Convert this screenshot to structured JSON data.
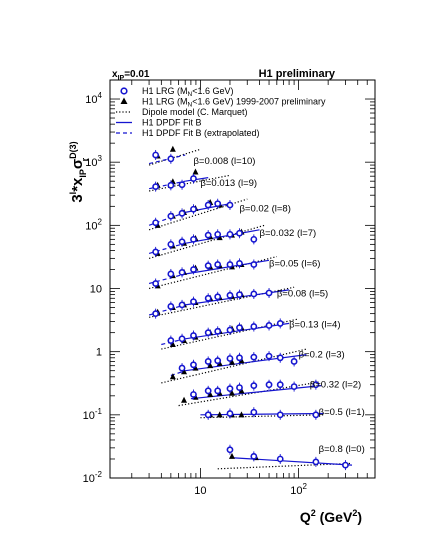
{
  "chart_data": {
    "type": "scatter",
    "header_left_main": "x",
    "header_left_sub": "IP",
    "header_left_value": "=0.01",
    "header_right": "H1 preliminary",
    "ylabel_main": "3",
    "ylabel_exp1": "l",
    "ylabel_mid": "*x",
    "ylabel_sub": "IP",
    "ylabel_sigma": "σ",
    "ylabel_exp2": "D(3)",
    "ylabel_sub2": "r",
    "xlabel_main": "Q",
    "xlabel_exp": "2",
    "xlabel_unit": " (GeV",
    "xlabel_unit_exp": "2",
    "xlabel_close": ")",
    "x_scale": "log",
    "y_scale": "log",
    "xlim": [
      1.2,
      600
    ],
    "ylim": [
      0.01,
      20000
    ],
    "x_ticks": [
      {
        "value": 10,
        "base": "10",
        "exp": ""
      },
      {
        "value": 100,
        "base": "10",
        "exp": "2"
      }
    ],
    "y_ticks": [
      {
        "value": 0.01,
        "base": "10",
        "exp": "-2"
      },
      {
        "value": 0.1,
        "base": "10",
        "exp": "-1"
      },
      {
        "value": 1,
        "base": "1",
        "exp": ""
      },
      {
        "value": 10,
        "base": "10",
        "exp": ""
      },
      {
        "value": 100,
        "base": "10",
        "exp": "2"
      },
      {
        "value": 1000,
        "base": "10",
        "exp": "3"
      },
      {
        "value": 10000,
        "base": "10",
        "exp": "4"
      }
    ],
    "legend": [
      {
        "kind": "open-circle",
        "color": "#1515d0",
        "text": "H1 LRG (M",
        "sub": "N",
        "rest": "<1.6 GeV)"
      },
      {
        "kind": "triangle",
        "color": "#000000",
        "text": "H1 LRG (M",
        "sub": "N",
        "rest": "<1.6 GeV) 1999-2007 preliminary"
      },
      {
        "kind": "dotted",
        "color": "#000000",
        "text": "Dipole model (C. Marquet)",
        "sub": "",
        "rest": ""
      },
      {
        "kind": "solid",
        "color": "#1515d0",
        "text": "H1 DPDF Fit B",
        "sub": "",
        "rest": ""
      },
      {
        "kind": "dashed",
        "color": "#1515d0",
        "text": "H1 DPDF Fit B (extrapolated)",
        "sub": "",
        "rest": ""
      }
    ],
    "bins": [
      {
        "label": "β=0.008 (l=10)",
        "label_x": 8.5,
        "label_y": 1050,
        "circles": [
          [
            3.5,
            1300
          ],
          [
            5,
            1130
          ]
        ],
        "triangles": [
          [
            3.5,
            1250
          ],
          [
            5,
            1600
          ]
        ],
        "dipole": [
          [
            3,
            900
          ],
          [
            10,
            1600
          ]
        ],
        "fit_solid": [],
        "fit_dashed": [
          [
            3,
            950
          ],
          [
            7,
            1300
          ]
        ]
      },
      {
        "label": "β=0.013 (l=9)",
        "label_x": 10,
        "label_y": 470,
        "circles": [
          [
            3.5,
            410
          ],
          [
            5,
            430
          ],
          [
            6.5,
            440
          ],
          [
            8.5,
            550
          ]
        ],
        "triangles": [
          [
            3.5,
            430
          ],
          [
            5,
            490
          ],
          [
            8.5,
            700
          ]
        ],
        "dipole": [
          [
            3,
            350
          ],
          [
            20,
            620
          ]
        ],
        "fit_solid": [
          [
            7,
            500
          ],
          [
            12,
            570
          ]
        ],
        "fit_dashed": [
          [
            3,
            380
          ],
          [
            7,
            500
          ]
        ]
      },
      {
        "label": "β=0.02 (l=8)",
        "label_x": 25,
        "label_y": 185,
        "circles": [
          [
            3.5,
            110
          ],
          [
            5,
            140
          ],
          [
            6.5,
            155
          ],
          [
            8.5,
            180
          ],
          [
            12,
            210
          ],
          [
            15,
            220
          ],
          [
            20,
            210
          ]
        ],
        "triangles": [
          [
            3.5,
            100
          ],
          [
            5,
            140
          ],
          [
            6.5,
            160
          ],
          [
            8.5,
            185
          ],
          [
            12,
            230
          ],
          [
            15,
            210
          ]
        ],
        "dipole": [
          [
            3,
            85
          ],
          [
            30,
            260
          ]
        ],
        "fit_solid": [
          [
            7,
            160
          ],
          [
            20,
            220
          ]
        ],
        "fit_dashed": [
          [
            3,
            100
          ],
          [
            7,
            160
          ]
        ]
      },
      {
        "label": "β=0.032 (l=7)",
        "label_x": 40,
        "label_y": 75,
        "circles": [
          [
            3.5,
            38
          ],
          [
            5,
            50
          ],
          [
            6.5,
            55
          ],
          [
            8.5,
            60
          ],
          [
            12,
            70
          ],
          [
            15,
            72
          ],
          [
            20,
            72
          ],
          [
            25,
            75
          ],
          [
            35,
            60
          ]
        ],
        "triangles": [
          [
            3.5,
            36
          ],
          [
            5,
            47
          ],
          [
            6.5,
            52
          ],
          [
            8.5,
            62
          ],
          [
            12,
            66
          ],
          [
            15,
            64
          ],
          [
            20,
            70
          ],
          [
            25,
            78
          ]
        ],
        "dipole": [
          [
            3,
            30
          ],
          [
            45,
            100
          ]
        ],
        "fit_solid": [
          [
            7,
            52
          ],
          [
            40,
            85
          ]
        ],
        "fit_dashed": [
          [
            3,
            36
          ],
          [
            7,
            52
          ]
        ]
      },
      {
        "label": "β=0.05 (l=6)",
        "label_x": 50,
        "label_y": 25,
        "circles": [
          [
            3.5,
            12
          ],
          [
            5,
            17
          ],
          [
            6.5,
            18
          ],
          [
            8.5,
            20
          ],
          [
            12,
            23
          ],
          [
            15,
            24
          ],
          [
            20,
            24
          ],
          [
            25,
            25
          ],
          [
            35,
            24
          ]
        ],
        "triangles": [
          [
            3.5,
            11
          ],
          [
            5,
            16
          ],
          [
            6.5,
            18
          ],
          [
            8.5,
            21
          ],
          [
            12,
            22
          ],
          [
            15,
            23
          ],
          [
            20,
            22
          ],
          [
            25,
            24
          ]
        ],
        "dipole": [
          [
            3,
            10
          ],
          [
            60,
            32
          ]
        ],
        "fit_solid": [
          [
            7,
            17
          ],
          [
            50,
            28
          ]
        ],
        "fit_dashed": [
          [
            3,
            12
          ],
          [
            7,
            17
          ]
        ]
      },
      {
        "label": "β=0.08 (l=5)",
        "label_x": 60,
        "label_y": 8.3,
        "circles": [
          [
            3.5,
            4
          ],
          [
            5,
            5.2
          ],
          [
            6.5,
            5.5
          ],
          [
            8.5,
            6.2
          ],
          [
            12,
            7
          ],
          [
            15,
            7.4
          ],
          [
            20,
            7.8
          ],
          [
            25,
            8
          ],
          [
            35,
            8.2
          ],
          [
            50,
            8.5
          ]
        ],
        "triangles": [
          [
            3.5,
            4.2
          ],
          [
            5,
            5
          ],
          [
            6.5,
            5.5
          ],
          [
            8.5,
            6
          ],
          [
            12,
            7
          ],
          [
            15,
            7.2
          ],
          [
            20,
            7.5
          ],
          [
            25,
            8
          ]
        ],
        "dipole": [
          [
            3,
            3.5
          ],
          [
            90,
            10.5
          ]
        ],
        "fit_solid": [
          [
            7,
            5.5
          ],
          [
            80,
            9.5
          ]
        ],
        "fit_dashed": [
          [
            3,
            3.8
          ],
          [
            7,
            5.5
          ]
        ]
      },
      {
        "label": "β=0.13 (l=4)",
        "label_x": 80,
        "label_y": 2.7,
        "circles": [
          [
            5,
            1.5
          ],
          [
            6.5,
            1.6
          ],
          [
            8.5,
            1.8
          ],
          [
            12,
            2
          ],
          [
            15,
            2.1
          ],
          [
            20,
            2.2
          ],
          [
            25,
            2.4
          ],
          [
            35,
            2.5
          ],
          [
            50,
            2.6
          ],
          [
            65,
            2.8
          ]
        ],
        "triangles": [
          [
            5,
            1.3
          ],
          [
            6.5,
            1.5
          ],
          [
            8.5,
            1.7
          ],
          [
            12,
            2
          ],
          [
            15,
            2.1
          ],
          [
            20,
            2.3
          ],
          [
            25,
            2.4
          ]
        ],
        "dipole": [
          [
            4,
            1.1
          ],
          [
            100,
            3.3
          ]
        ],
        "fit_solid": [
          [
            7,
            1.6
          ],
          [
            80,
            2.8
          ]
        ],
        "fit_dashed": [
          [
            4,
            1.3
          ],
          [
            7,
            1.6
          ]
        ]
      },
      {
        "label": "β=0.2 (l=3)",
        "label_x": 100,
        "label_y": 0.9,
        "circles": [
          [
            6.5,
            0.55
          ],
          [
            8.5,
            0.62
          ],
          [
            12,
            0.7
          ],
          [
            15,
            0.72
          ],
          [
            20,
            0.78
          ],
          [
            25,
            0.8
          ],
          [
            35,
            0.82
          ],
          [
            50,
            0.85
          ],
          [
            65,
            0.8
          ],
          [
            90,
            0.7
          ]
        ],
        "triangles": [
          [
            5,
            0.4
          ],
          [
            6.5,
            0.48
          ],
          [
            8.5,
            0.55
          ],
          [
            12,
            0.6
          ],
          [
            15,
            0.65
          ],
          [
            20,
            0.68
          ],
          [
            25,
            0.72
          ]
        ],
        "dipole": [
          [
            4,
            0.32
          ],
          [
            120,
            1.1
          ]
        ],
        "fit_solid": [
          [
            7,
            0.5
          ],
          [
            120,
            0.9
          ]
        ],
        "fit_dashed": [
          [
            5,
            0.42
          ],
          [
            7,
            0.5
          ]
        ]
      },
      {
        "label": "β=0.32 (l=2)",
        "label_x": 130,
        "label_y": 0.3,
        "circles": [
          [
            8.5,
            0.21
          ],
          [
            12,
            0.24
          ],
          [
            15,
            0.24
          ],
          [
            20,
            0.26
          ],
          [
            25,
            0.27
          ],
          [
            35,
            0.29
          ],
          [
            50,
            0.3
          ],
          [
            65,
            0.3
          ],
          [
            90,
            0.28
          ],
          [
            150,
            0.3
          ]
        ],
        "triangles": [
          [
            6.5,
            0.17
          ],
          [
            8.5,
            0.19
          ],
          [
            12,
            0.21
          ],
          [
            15,
            0.22
          ],
          [
            20,
            0.22
          ],
          [
            25,
            0.24
          ]
        ],
        "dipole": [
          [
            6,
            0.14
          ],
          [
            160,
            0.33
          ]
        ],
        "fit_solid": [
          [
            8,
            0.18
          ],
          [
            170,
            0.29
          ]
        ],
        "fit_dashed": []
      },
      {
        "label": "β=0.5 (l=1)",
        "label_x": 160,
        "label_y": 0.11,
        "circles": [
          [
            12,
            0.1
          ],
          [
            20,
            0.105
          ],
          [
            35,
            0.11
          ],
          [
            65,
            0.1
          ],
          [
            150,
            0.1
          ]
        ],
        "triangles": [
          [
            12,
            0.1
          ],
          [
            15,
            0.1
          ],
          [
            20,
            0.1
          ],
          [
            25,
            0.1
          ]
        ],
        "dipole": [
          [
            10,
            0.09
          ],
          [
            180,
            0.1
          ]
        ],
        "fit_solid": [
          [
            10,
            0.1
          ],
          [
            180,
            0.105
          ]
        ],
        "fit_dashed": []
      },
      {
        "label": "β=0.8 (l=0)",
        "label_x": 160,
        "label_y": 0.029,
        "circles": [
          [
            20,
            0.028
          ],
          [
            35,
            0.022
          ],
          [
            65,
            0.02
          ],
          [
            150,
            0.018
          ],
          [
            300,
            0.016
          ]
        ],
        "triangles": [
          [
            20,
            0.022
          ],
          [
            35,
            0.021
          ]
        ],
        "dipole": [
          [
            15,
            0.014
          ],
          [
            350,
            0.017
          ]
        ],
        "fit_solid": [
          [
            20,
            0.021
          ],
          [
            350,
            0.016
          ]
        ],
        "fit_dashed": []
      }
    ]
  }
}
